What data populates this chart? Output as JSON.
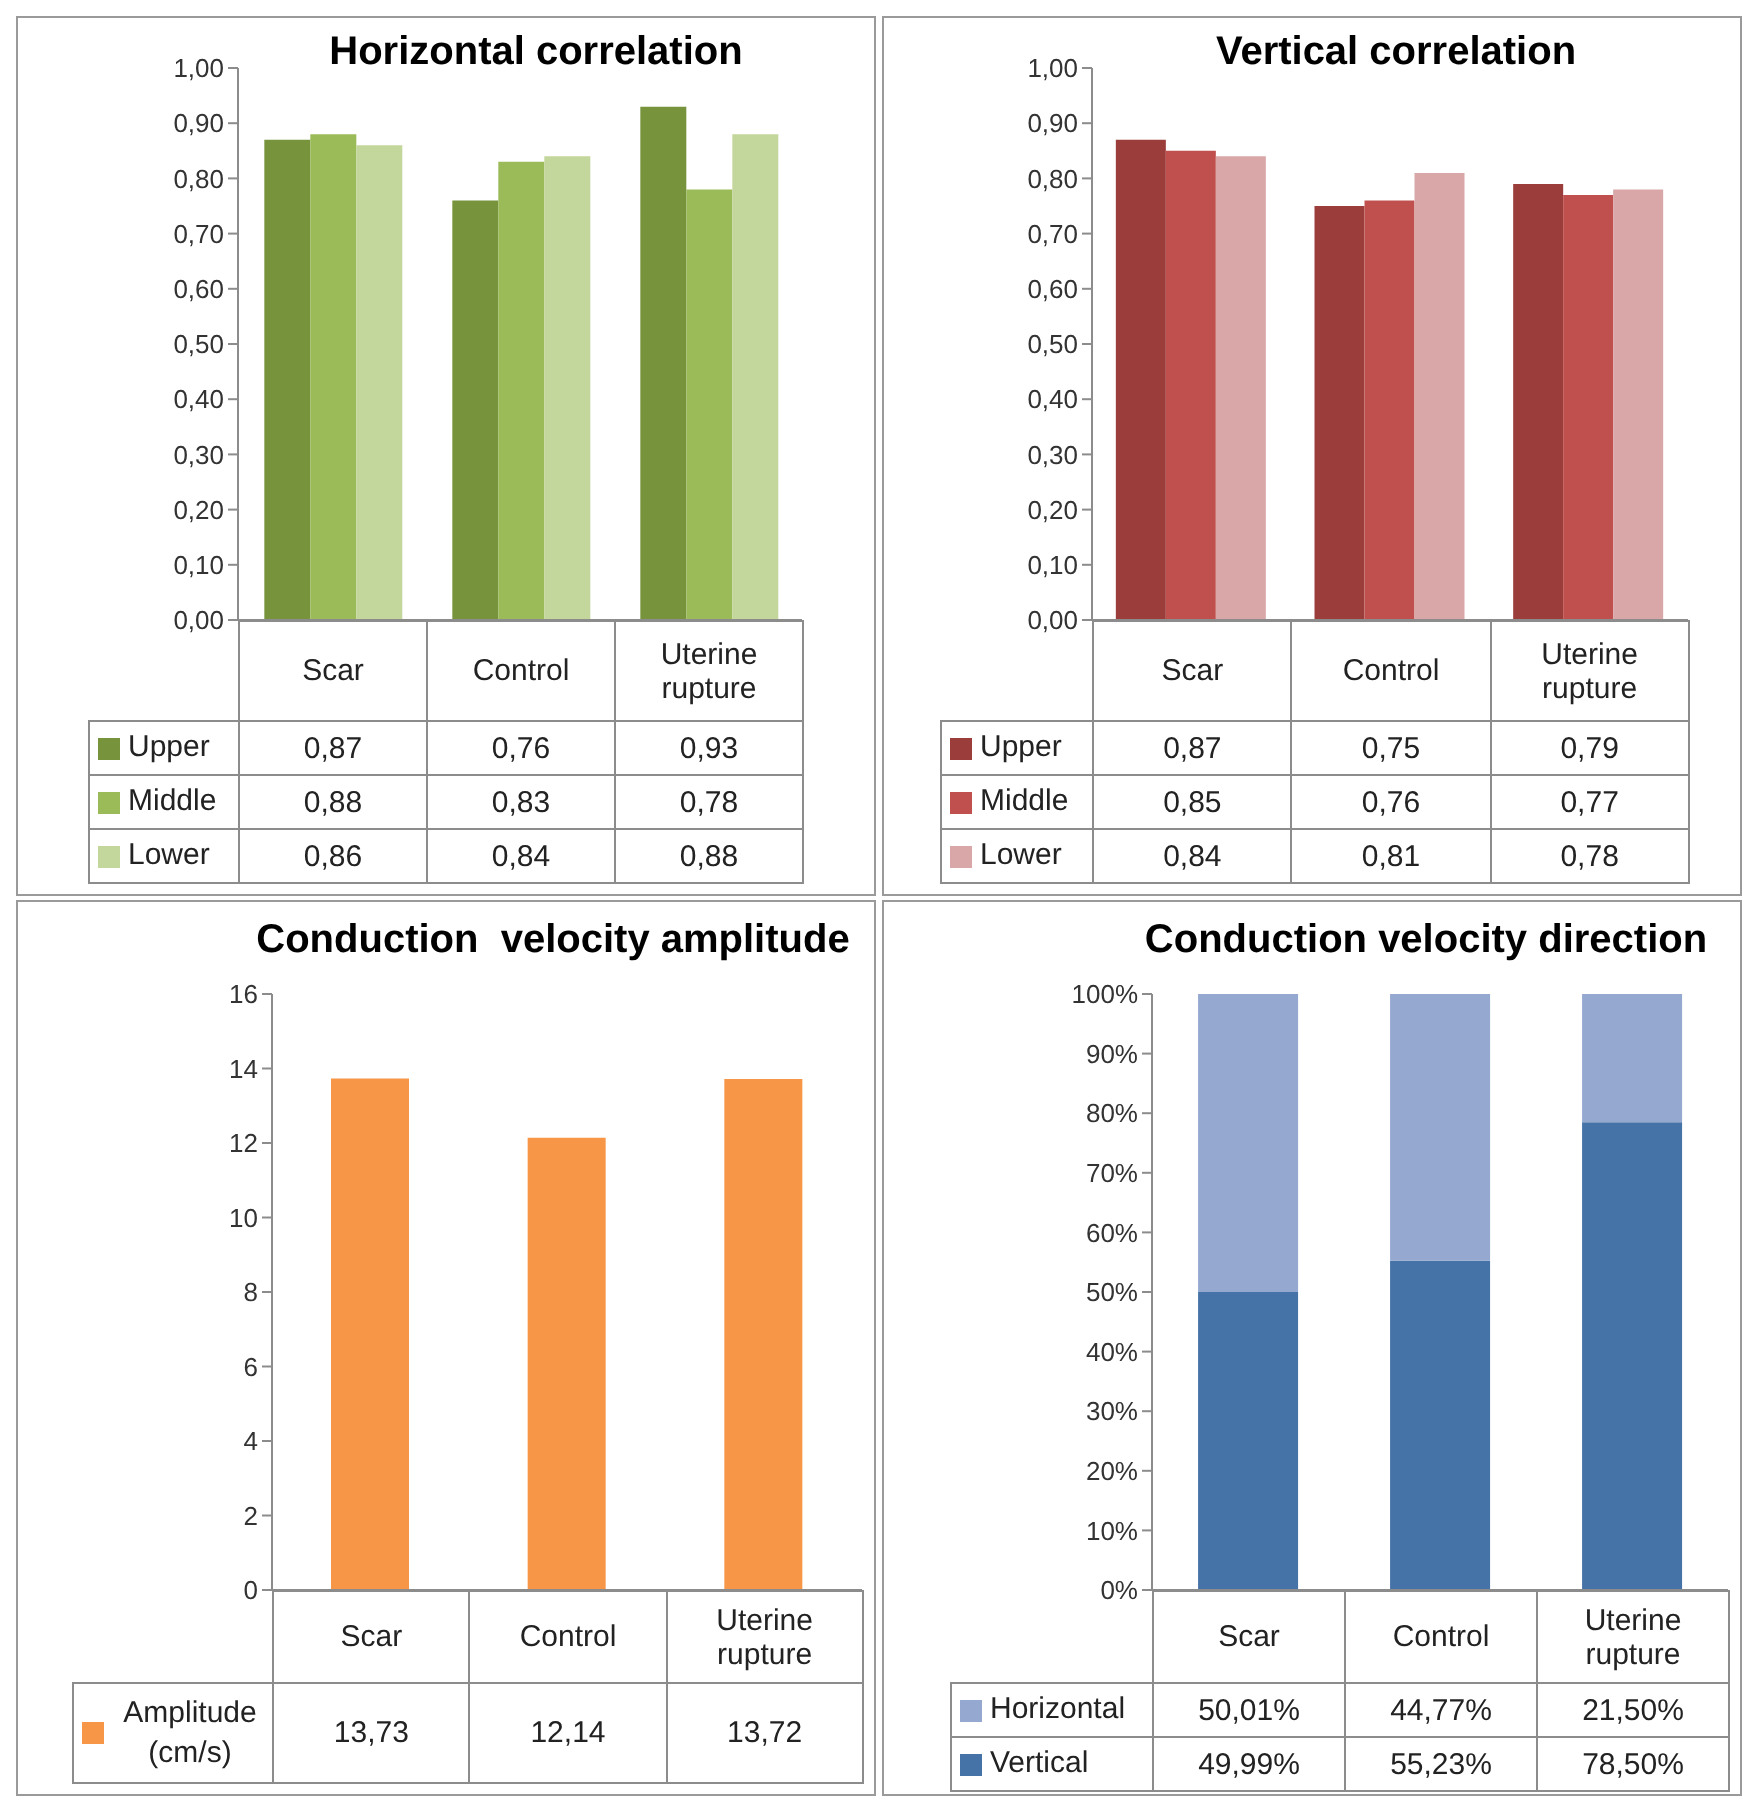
{
  "chart_data": [
    {
      "type": "bar",
      "title": "Horizontal correlation",
      "categories": [
        "Scar",
        "Control",
        "Uterine rupture"
      ],
      "legend": "bottom",
      "ylim": [
        0,
        1
      ],
      "yticks": [
        {
          "value": 0,
          "label": "0,00"
        },
        {
          "value": 0.1,
          "label": "0,10"
        },
        {
          "value": 0.2,
          "label": "0,20"
        },
        {
          "value": 0.3,
          "label": "0,30"
        },
        {
          "value": 0.4,
          "label": "0,40"
        },
        {
          "value": 0.5,
          "label": "0,50"
        },
        {
          "value": 0.6,
          "label": "0,60"
        },
        {
          "value": 0.7,
          "label": "0,70"
        },
        {
          "value": 0.8,
          "label": "0,80"
        },
        {
          "value": 0.9,
          "label": "0,90"
        },
        {
          "value": 1,
          "label": "1,00"
        }
      ],
      "series": [
        {
          "name": "Upper",
          "color": "#77933c",
          "values": [
            0.87,
            0.76,
            0.93
          ],
          "value_labels": [
            "0,87",
            "0,76",
            "0,93"
          ]
        },
        {
          "name": "Middle",
          "color": "#9bbb59",
          "values": [
            0.88,
            0.83,
            0.78
          ],
          "value_labels": [
            "0,88",
            "0,83",
            "0,78"
          ]
        },
        {
          "name": "Lower",
          "color": "#c3d69b",
          "values": [
            0.86,
            0.84,
            0.88
          ],
          "value_labels": [
            "0,86",
            "0,84",
            "0,88"
          ]
        }
      ]
    },
    {
      "type": "bar",
      "title": "Vertical correlation",
      "categories": [
        "Scar",
        "Control",
        "Uterine rupture"
      ],
      "legend": "bottom",
      "ylim": [
        0,
        1
      ],
      "yticks": [
        {
          "value": 0,
          "label": "0,00"
        },
        {
          "value": 0.1,
          "label": "0,10"
        },
        {
          "value": 0.2,
          "label": "0,20"
        },
        {
          "value": 0.3,
          "label": "0,30"
        },
        {
          "value": 0.4,
          "label": "0,40"
        },
        {
          "value": 0.5,
          "label": "0,50"
        },
        {
          "value": 0.6,
          "label": "0,60"
        },
        {
          "value": 0.7,
          "label": "0,70"
        },
        {
          "value": 0.8,
          "label": "0,80"
        },
        {
          "value": 0.9,
          "label": "0,90"
        },
        {
          "value": 1,
          "label": "1,00"
        }
      ],
      "series": [
        {
          "name": "Upper",
          "color": "#9b3d3b",
          "values": [
            0.87,
            0.75,
            0.79
          ],
          "value_labels": [
            "0,87",
            "0,75",
            "0,79"
          ]
        },
        {
          "name": "Middle",
          "color": "#c0504d",
          "values": [
            0.85,
            0.76,
            0.77
          ],
          "value_labels": [
            "0,85",
            "0,76",
            "0,77"
          ]
        },
        {
          "name": "Lower",
          "color": "#d9a7a7",
          "values": [
            0.84,
            0.81,
            0.78
          ],
          "value_labels": [
            "0,84",
            "0,81",
            "0,78"
          ]
        }
      ]
    },
    {
      "type": "bar",
      "title": "Conduction  velocity amplitude",
      "categories": [
        "Scar",
        "Control",
        "Uterine rupture"
      ],
      "legend": "bottom",
      "ylim": [
        0,
        16
      ],
      "yticks": [
        0,
        2,
        4,
        6,
        8,
        10,
        12,
        14,
        16
      ],
      "series": [
        {
          "name": "Amplitude (cm/s)",
          "color": "#f79646",
          "values": [
            13.73,
            12.14,
            13.72
          ],
          "value_labels": [
            "13,73",
            "12,14",
            "13,72"
          ]
        }
      ]
    },
    {
      "type": "bar",
      "title": "Conduction velocity direction",
      "categories": [
        "Scar",
        "Control",
        "Uterine rupture"
      ],
      "legend": "bottom",
      "stacked": true,
      "ylim": [
        0,
        100
      ],
      "yticks": [
        {
          "value": 0,
          "label": "0%"
        },
        {
          "value": 10,
          "label": "10%"
        },
        {
          "value": 20,
          "label": "20%"
        },
        {
          "value": 30,
          "label": "30%"
        },
        {
          "value": 40,
          "label": "40%"
        },
        {
          "value": 50,
          "label": "50%"
        },
        {
          "value": 60,
          "label": "60%"
        },
        {
          "value": 70,
          "label": "70%"
        },
        {
          "value": 80,
          "label": "80%"
        },
        {
          "value": 90,
          "label": "90%"
        },
        {
          "value": 100,
          "label": "100%"
        }
      ],
      "series": [
        {
          "name": "Vertical",
          "color": "#4572a7",
          "values": [
            49.99,
            55.23,
            78.5
          ],
          "value_labels": [
            "49,99%",
            "55,23%",
            "78,50%"
          ]
        },
        {
          "name": "Horizontal",
          "color": "#95a9d0",
          "values": [
            50.01,
            44.77,
            21.5
          ],
          "value_labels": [
            "50,01%",
            "44,77%",
            "21,50%"
          ]
        }
      ]
    }
  ]
}
